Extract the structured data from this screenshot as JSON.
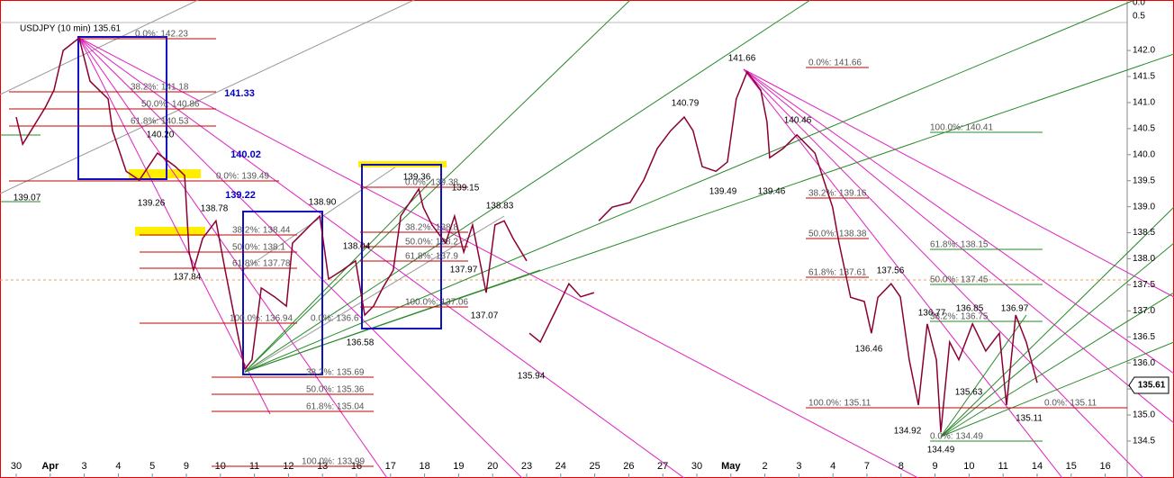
{
  "chart_data": {
    "type": "line",
    "title": "USDJPY (10 min) 135.61",
    "categories": [
      "30",
      "Apr",
      "3",
      "4",
      "5",
      "9",
      "10",
      "11",
      "12",
      "13",
      "16",
      "17",
      "18",
      "19",
      "20",
      "23",
      "24",
      "25",
      "26",
      "27",
      "30",
      "May",
      "2",
      "3",
      "4",
      "7",
      "8",
      "9",
      "10",
      "11",
      "14",
      "15",
      "16"
    ],
    "xlim": [
      -0.476,
      32.646
    ],
    "ylim": [
      133.79,
      142.97
    ],
    "yticks": [
      {
        "value": 134.5,
        "label": "134.5"
      },
      {
        "value": 135,
        "label": "135.0"
      },
      {
        "value": 135.5,
        "label": "135.5"
      },
      {
        "value": 136,
        "label": "136.0"
      },
      {
        "value": 136.5,
        "label": "136.5"
      },
      {
        "value": 137,
        "label": "137.0"
      },
      {
        "value": 137.5,
        "label": "137.5"
      },
      {
        "value": 138,
        "label": "138.0"
      },
      {
        "value": 138.5,
        "label": "138.5"
      },
      {
        "value": 139,
        "label": "139.0"
      },
      {
        "value": 139.5,
        "label": "139.5"
      },
      {
        "value": 140,
        "label": "140.0"
      },
      {
        "value": 140.5,
        "label": "140.5"
      },
      {
        "value": 141,
        "label": "141.0"
      },
      {
        "value": 141.5,
        "label": "141.5"
      },
      {
        "value": 142,
        "label": "142.0"
      }
    ],
    "top_labels": [
      "0.0",
      "0.5"
    ],
    "last_price_label": "135.61",
    "series": [
      {
        "name": "USDJPY",
        "color": "#8b0032",
        "x": [
          0,
          0.19,
          0.85,
          1.11,
          1.38,
          1.85,
          2.17,
          2.7,
          2.83,
          3.23,
          3.62,
          4.15,
          4.68,
          4.95,
          5.08,
          5.21,
          5.48,
          5.87,
          6.14,
          6.53,
          6.72,
          6.93,
          7.2,
          7.59,
          7.94,
          8.12,
          8.65,
          8.92,
          9.18,
          9.58,
          9.97,
          10.24,
          10.5,
          10.77,
          11.08,
          11.3,
          11.83,
          11.96,
          12.22,
          12.62,
          12.88,
          13.15,
          13.41,
          13.81,
          14.07,
          14.34,
          14.6,
          15.0,
          null,
          15.08,
          15.4,
          15.79,
          16.24,
          16.59,
          16.98,
          null,
          17.12,
          17.51,
          18.04,
          18.44,
          18.84,
          19.23,
          19.63,
          19.89,
          20.16,
          20.56,
          20.9,
          21.16,
          21.48,
          21.88,
          22.06,
          22.14,
          22.54,
          22.94,
          23.47,
          23.73,
          23.99,
          24.18,
          24.52,
          24.92,
          25.13,
          25.32,
          25.71,
          25.98,
          26.24,
          26.51,
          26.77,
          27.04,
          27.17,
          27.43,
          27.7,
          28.1,
          28.49,
          28.89,
          29.1,
          29.37,
          29.68,
          30.0
        ],
        "values": [
          140.72,
          140.2,
          140.9,
          141.24,
          142.0,
          142.24,
          141.41,
          141.07,
          140.46,
          139.68,
          139.51,
          140.03,
          139.77,
          139.6,
          138.13,
          137.78,
          138.39,
          138.73,
          137.78,
          136.49,
          135.88,
          136.06,
          137.44,
          137.27,
          137.09,
          138.3,
          138.65,
          138.82,
          137.61,
          137.78,
          137.96,
          136.92,
          137.09,
          137.44,
          137.78,
          138.82,
          139.34,
          138.99,
          138.65,
          138.3,
          138.82,
          138.13,
          138.65,
          137.35,
          138.65,
          138.73,
          138.39,
          137.96,
          null,
          136.57,
          136.4,
          136.92,
          137.52,
          137.27,
          137.35,
          null,
          138.73,
          138.99,
          139.08,
          139.51,
          140.12,
          140.46,
          140.72,
          140.46,
          139.77,
          139.68,
          139.86,
          141.07,
          141.59,
          141.24,
          140.63,
          139.94,
          140.12,
          140.38,
          140.03,
          139.51,
          138.99,
          138.3,
          137.26,
          137.18,
          136.57,
          137.26,
          137.52,
          137.27,
          136.06,
          135.19,
          136.75,
          136.06,
          134.67,
          136.4,
          136.06,
          136.75,
          136.23,
          136.57,
          135.19,
          136.92,
          136.4,
          135.62
        ]
      }
    ],
    "price_labels": [
      "139.07",
      "139.26",
      "140.20",
      "138.78",
      "137.84",
      "138.90",
      "138.04",
      "136.58",
      "139.36",
      "139.15",
      "138.83",
      "137.97",
      "137.07",
      "135.94",
      "140.79",
      "139.49",
      "141.66",
      "139.46",
      "140.46",
      "137.56",
      "136.46",
      "136.77",
      "136.85",
      "136.97",
      "135.63",
      "135.11",
      "134.92",
      "134.49"
    ],
    "level_labels": [
      "141.33",
      "140.02",
      "139.22"
    ],
    "fib_labels": [
      "0.0%: 142.23",
      "38.2%: 141.18",
      "50.0%: 140.86",
      "61.8%: 140.53",
      "0.0%: 139.49",
      "38.2%: 138.44",
      "50.0%: 138.1",
      "61.8%: 137.78",
      "100.0%: 136.94",
      "0.0%: 136.6",
      "38.2%: 135.69",
      "50.0%: 135.36",
      "61.8%: 135.04",
      "100.0%: 133.99",
      "0.0%: 139.38",
      "38.2%: 138.8",
      "50.0%: 138.2",
      "61.8%: 137.9",
      "100.0%: 137.06",
      "0.0%: 141.66",
      "38.2%: 139.16",
      "50.0%: 138.38",
      "61.8%: 137.61",
      "100.0%: 140.41",
      "61.8%: 138.15",
      "50.0%: 137.45",
      "38.2%: 136.75",
      "100.0%: 135.11",
      "0.0%: 135.11",
      "0.0%: 134.49"
    ]
  }
}
